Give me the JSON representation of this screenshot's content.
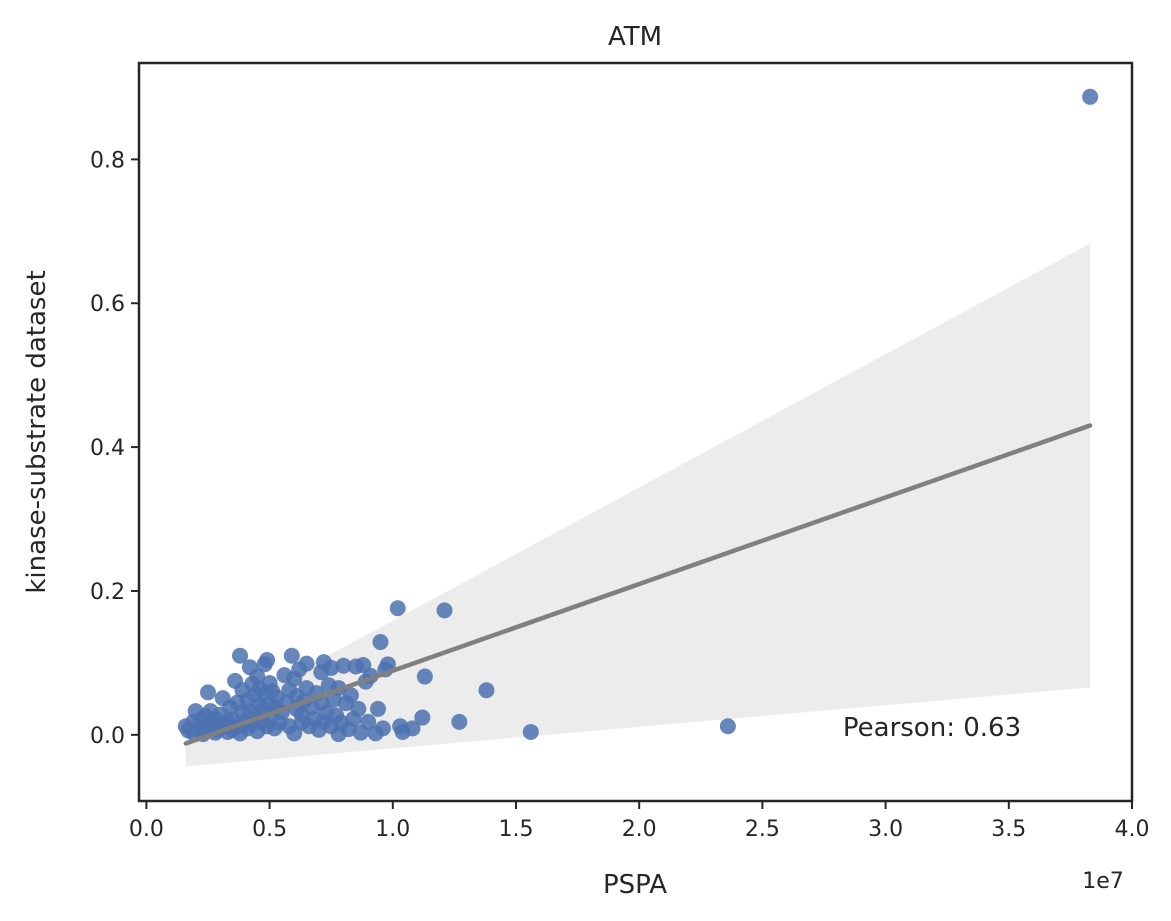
{
  "chart_data": {
    "type": "scatter",
    "title": "ATM",
    "xlabel": "PSPA",
    "ylabel": "kinase-substrate dataset",
    "x_scale_label": "1e7",
    "xlim": [
      -0.03,
      4.0
    ],
    "ylim": [
      -0.092,
      0.934
    ],
    "x_ticks": [
      0.0,
      0.5,
      1.0,
      1.5,
      2.0,
      2.5,
      3.0,
      3.5,
      4.0
    ],
    "x_tick_labels": [
      "0.0",
      "0.5",
      "1.0",
      "1.5",
      "2.0",
      "2.5",
      "3.0",
      "3.5",
      "4.0"
    ],
    "y_ticks": [
      0.0,
      0.2,
      0.4,
      0.6,
      0.8
    ],
    "y_tick_labels": [
      "0.0",
      "0.2",
      "0.4",
      "0.6",
      "0.8"
    ],
    "grid": false,
    "annotation": "Pearson: 0.63",
    "colors": {
      "points": "#4c72b0",
      "regression_line": "#808080",
      "confidence_band": "#d9d9d9"
    },
    "regression": {
      "x": [
        0.16,
        3.83
      ],
      "y": [
        -0.012,
        0.43
      ]
    },
    "confidence_band": {
      "x": [
        0.16,
        3.83
      ],
      "upper": [
        0.003,
        0.683
      ],
      "lower": [
        -0.044,
        0.066
      ]
    },
    "points": [
      [
        0.16,
        0.012
      ],
      [
        0.17,
        0.006
      ],
      [
        0.19,
        0.003
      ],
      [
        0.19,
        0.018
      ],
      [
        0.2,
        0.033
      ],
      [
        0.22,
        0.008
      ],
      [
        0.22,
        0.021
      ],
      [
        0.23,
        0.001
      ],
      [
        0.24,
        0.026
      ],
      [
        0.25,
        0.059
      ],
      [
        0.25,
        0.012
      ],
      [
        0.26,
        0.033
      ],
      [
        0.27,
        0.015
      ],
      [
        0.28,
        0.003
      ],
      [
        0.28,
        0.022
      ],
      [
        0.29,
        0.007
      ],
      [
        0.3,
        0.028
      ],
      [
        0.31,
        0.051
      ],
      [
        0.32,
        0.012
      ],
      [
        0.33,
        0.018
      ],
      [
        0.33,
        0.004
      ],
      [
        0.34,
        0.038
      ],
      [
        0.35,
        0.021
      ],
      [
        0.35,
        0.007
      ],
      [
        0.36,
        0.075
      ],
      [
        0.37,
        0.045
      ],
      [
        0.37,
        0.013
      ],
      [
        0.38,
        0.002
      ],
      [
        0.38,
        0.11
      ],
      [
        0.39,
        0.031
      ],
      [
        0.39,
        0.062
      ],
      [
        0.4,
        0.019
      ],
      [
        0.41,
        0.048
      ],
      [
        0.41,
        0.009
      ],
      [
        0.42,
        0.094
      ],
      [
        0.42,
        0.033
      ],
      [
        0.43,
        0.071
      ],
      [
        0.43,
        0.015
      ],
      [
        0.44,
        0.055
      ],
      [
        0.44,
        0.026
      ],
      [
        0.45,
        0.005
      ],
      [
        0.45,
        0.081
      ],
      [
        0.46,
        0.041
      ],
      [
        0.46,
        0.064
      ],
      [
        0.47,
        0.019
      ],
      [
        0.47,
        0.035
      ],
      [
        0.48,
        0.098
      ],
      [
        0.48,
        0.057
      ],
      [
        0.49,
        0.012
      ],
      [
        0.49,
        0.104
      ],
      [
        0.5,
        0.044
      ],
      [
        0.5,
        0.072
      ],
      [
        0.51,
        0.028
      ],
      [
        0.51,
        0.061
      ],
      [
        0.52,
        0.009
      ],
      [
        0.52,
        0.038
      ],
      [
        0.53,
        0.052
      ],
      [
        0.54,
        0.017
      ],
      [
        0.55,
        0.031
      ],
      [
        0.56,
        0.083
      ],
      [
        0.57,
        0.045
      ],
      [
        0.58,
        0.012
      ],
      [
        0.58,
        0.062
      ],
      [
        0.59,
        0.11
      ],
      [
        0.6,
        0.078
      ],
      [
        0.6,
        0.002
      ],
      [
        0.61,
        0.036
      ],
      [
        0.61,
        0.054
      ],
      [
        0.62,
        0.091
      ],
      [
        0.63,
        0.017
      ],
      [
        0.63,
        0.028
      ],
      [
        0.64,
        0.047
      ],
      [
        0.65,
        0.099
      ],
      [
        0.65,
        0.065
      ],
      [
        0.66,
        0.012
      ],
      [
        0.67,
        0.038
      ],
      [
        0.68,
        0.022
      ],
      [
        0.69,
        0.058
      ],
      [
        0.7,
        0.007
      ],
      [
        0.71,
        0.087
      ],
      [
        0.71,
        0.045
      ],
      [
        0.72,
        0.101
      ],
      [
        0.72,
        0.018
      ],
      [
        0.73,
        0.031
      ],
      [
        0.74,
        0.069
      ],
      [
        0.75,
        0.012
      ],
      [
        0.75,
        0.093
      ],
      [
        0.76,
        0.049
      ],
      [
        0.77,
        0.027
      ],
      [
        0.78,
        0.001
      ],
      [
        0.78,
        0.065
      ],
      [
        0.79,
        0.017
      ],
      [
        0.8,
        0.096
      ],
      [
        0.81,
        0.044
      ],
      [
        0.82,
        0.008
      ],
      [
        0.83,
        0.055
      ],
      [
        0.84,
        0.022
      ],
      [
        0.85,
        0.095
      ],
      [
        0.86,
        0.036
      ],
      [
        0.87,
        0.003
      ],
      [
        0.88,
        0.097
      ],
      [
        0.89,
        0.074
      ],
      [
        0.9,
        0.018
      ],
      [
        0.91,
        0.082
      ],
      [
        0.93,
        0.002
      ],
      [
        0.94,
        0.036
      ],
      [
        0.95,
        0.129
      ],
      [
        0.96,
        0.009
      ],
      [
        0.97,
        0.091
      ],
      [
        0.98,
        0.098
      ],
      [
        1.02,
        0.176
      ],
      [
        1.03,
        0.012
      ],
      [
        1.04,
        0.004
      ],
      [
        1.08,
        0.009
      ],
      [
        1.12,
        0.024
      ],
      [
        1.13,
        0.081
      ],
      [
        1.21,
        0.173
      ],
      [
        1.27,
        0.018
      ],
      [
        1.38,
        0.062
      ],
      [
        1.56,
        0.004
      ],
      [
        2.36,
        0.012
      ],
      [
        3.83,
        0.887
      ]
    ]
  }
}
